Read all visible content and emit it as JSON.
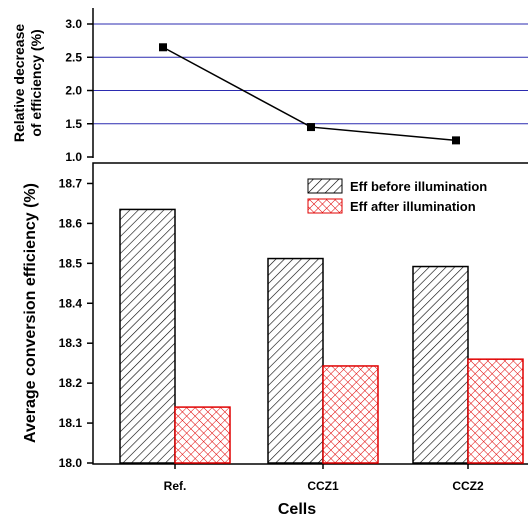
{
  "chart_data": [
    {
      "type": "line",
      "categories": [
        "Ref.",
        "CCZ1",
        "CCZ2"
      ],
      "series": [
        {
          "values": [
            2.65,
            1.45,
            1.25
          ]
        }
      ],
      "ylabel_line1": "Relative decrease",
      "ylabel_line2": "of efficiency (%)",
      "ylim": [
        1.0,
        3.0
      ],
      "yticks": [
        "1.0",
        "1.5",
        "2.0",
        "2.5",
        "3.0"
      ],
      "grid": true,
      "grid_color": "#2b2bb0",
      "line_color": "#000000"
    },
    {
      "type": "bar",
      "categories": [
        "Ref.",
        "CCZ1",
        "CCZ2"
      ],
      "series": [
        {
          "name": "Eff before illumination",
          "values": [
            18.635,
            18.512,
            18.492
          ],
          "color": "#000000",
          "pattern": "diagonal-hatch"
        },
        {
          "name": "Eff after illumination",
          "values": [
            18.14,
            18.243,
            18.26
          ],
          "color": "#e00000",
          "pattern": "cross-hatch"
        }
      ],
      "xlabel": "Cells",
      "ylabel": "Average conversion efficiency (%)",
      "ylim": [
        18.0,
        18.75
      ],
      "yticks": [
        "18.0",
        "18.1",
        "18.2",
        "18.3",
        "18.4",
        "18.5",
        "18.6",
        "18.7"
      ],
      "legend_position": "top-right"
    }
  ]
}
